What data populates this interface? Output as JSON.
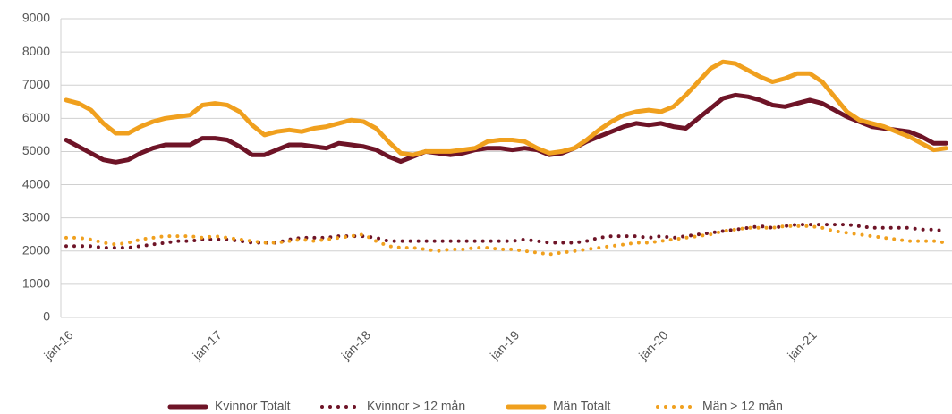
{
  "chart_data": {
    "type": "line",
    "categories": [
      "jan-16",
      null,
      null,
      null,
      null,
      null,
      null,
      null,
      null,
      null,
      null,
      null,
      "jan-17",
      null,
      null,
      null,
      null,
      null,
      null,
      null,
      null,
      null,
      null,
      null,
      "jan-18",
      null,
      null,
      null,
      null,
      null,
      null,
      null,
      null,
      null,
      null,
      null,
      "jan-19",
      null,
      null,
      null,
      null,
      null,
      null,
      null,
      null,
      null,
      null,
      null,
      "jan-20",
      null,
      null,
      null,
      null,
      null,
      null,
      null,
      null,
      null,
      null,
      null,
      "jan-21",
      null,
      null,
      null,
      null,
      null,
      null,
      null,
      null,
      null,
      null,
      null
    ],
    "series": [
      {
        "name": "Kvinnor Totalt",
        "color": "#6e1427",
        "style": "solid",
        "values": [
          5350,
          5150,
          4950,
          4750,
          4680,
          4750,
          4950,
          5100,
          5200,
          5200,
          5200,
          5400,
          5400,
          5350,
          5150,
          4900,
          4900,
          5050,
          5200,
          5200,
          5150,
          5100,
          5250,
          5200,
          5150,
          5050,
          4850,
          4700,
          4850,
          5000,
          4950,
          4900,
          4950,
          5050,
          5100,
          5100,
          5050,
          5100,
          5050,
          4900,
          4950,
          5100,
          5300,
          5450,
          5600,
          5750,
          5850,
          5800,
          5850,
          5750,
          5700,
          6000,
          6300,
          6600,
          6700,
          6650,
          6550,
          6400,
          6350,
          6450,
          6550,
          6450,
          6250,
          6050,
          5900,
          5750,
          5700,
          5650,
          5600,
          5450,
          5250,
          5250
        ]
      },
      {
        "name": "Kvinnor > 12 mån",
        "color": "#6e1427",
        "style": "dotted",
        "values": [
          2150,
          2150,
          2150,
          2100,
          2100,
          2100,
          2150,
          2200,
          2250,
          2300,
          2300,
          2350,
          2350,
          2350,
          2300,
          2250,
          2250,
          2250,
          2350,
          2400,
          2400,
          2400,
          2450,
          2450,
          2450,
          2400,
          2300,
          2300,
          2300,
          2300,
          2300,
          2300,
          2300,
          2300,
          2300,
          2300,
          2300,
          2350,
          2300,
          2250,
          2250,
          2250,
          2300,
          2400,
          2450,
          2450,
          2450,
          2400,
          2450,
          2400,
          2450,
          2500,
          2550,
          2600,
          2650,
          2700,
          2750,
          2700,
          2750,
          2800,
          2800,
          2800,
          2800,
          2800,
          2750,
          2700,
          2700,
          2700,
          2700,
          2650,
          2650,
          2600
        ]
      },
      {
        "name": "Män Totalt",
        "color": "#f0a01e",
        "style": "solid",
        "values": [
          6550,
          6450,
          6250,
          5850,
          5550,
          5550,
          5750,
          5900,
          6000,
          6050,
          6100,
          6400,
          6450,
          6400,
          6200,
          5800,
          5500,
          5600,
          5650,
          5600,
          5700,
          5750,
          5850,
          5950,
          5900,
          5700,
          5300,
          4950,
          4900,
          5000,
          5000,
          5000,
          5050,
          5100,
          5300,
          5350,
          5350,
          5300,
          5100,
          4950,
          5000,
          5100,
          5350,
          5650,
          5900,
          6100,
          6200,
          6250,
          6200,
          6350,
          6700,
          7100,
          7500,
          7700,
          7650,
          7450,
          7250,
          7100,
          7200,
          7350,
          7350,
          7100,
          6650,
          6200,
          5950,
          5850,
          5750,
          5600,
          5450,
          5250,
          5050,
          5100
        ]
      },
      {
        "name": "Män > 12 mån",
        "color": "#f0a01e",
        "style": "dotted",
        "values": [
          2400,
          2400,
          2350,
          2250,
          2200,
          2250,
          2350,
          2400,
          2450,
          2450,
          2450,
          2400,
          2450,
          2400,
          2350,
          2300,
          2250,
          2250,
          2300,
          2350,
          2300,
          2350,
          2400,
          2450,
          2500,
          2300,
          2150,
          2100,
          2100,
          2050,
          2000,
          2050,
          2050,
          2100,
          2100,
          2050,
          2050,
          2000,
          1950,
          1900,
          1950,
          2000,
          2050,
          2100,
          2150,
          2200,
          2250,
          2250,
          2300,
          2350,
          2400,
          2450,
          2500,
          2600,
          2650,
          2700,
          2700,
          2700,
          2750,
          2750,
          2750,
          2700,
          2600,
          2550,
          2500,
          2450,
          2400,
          2350,
          2300,
          2300,
          2300,
          2250
        ]
      }
    ],
    "ylim": [
      0,
      9000
    ],
    "yticks": [
      0,
      1000,
      2000,
      3000,
      4000,
      5000,
      6000,
      7000,
      8000,
      9000
    ],
    "grid": true,
    "legend": "bottom"
  }
}
